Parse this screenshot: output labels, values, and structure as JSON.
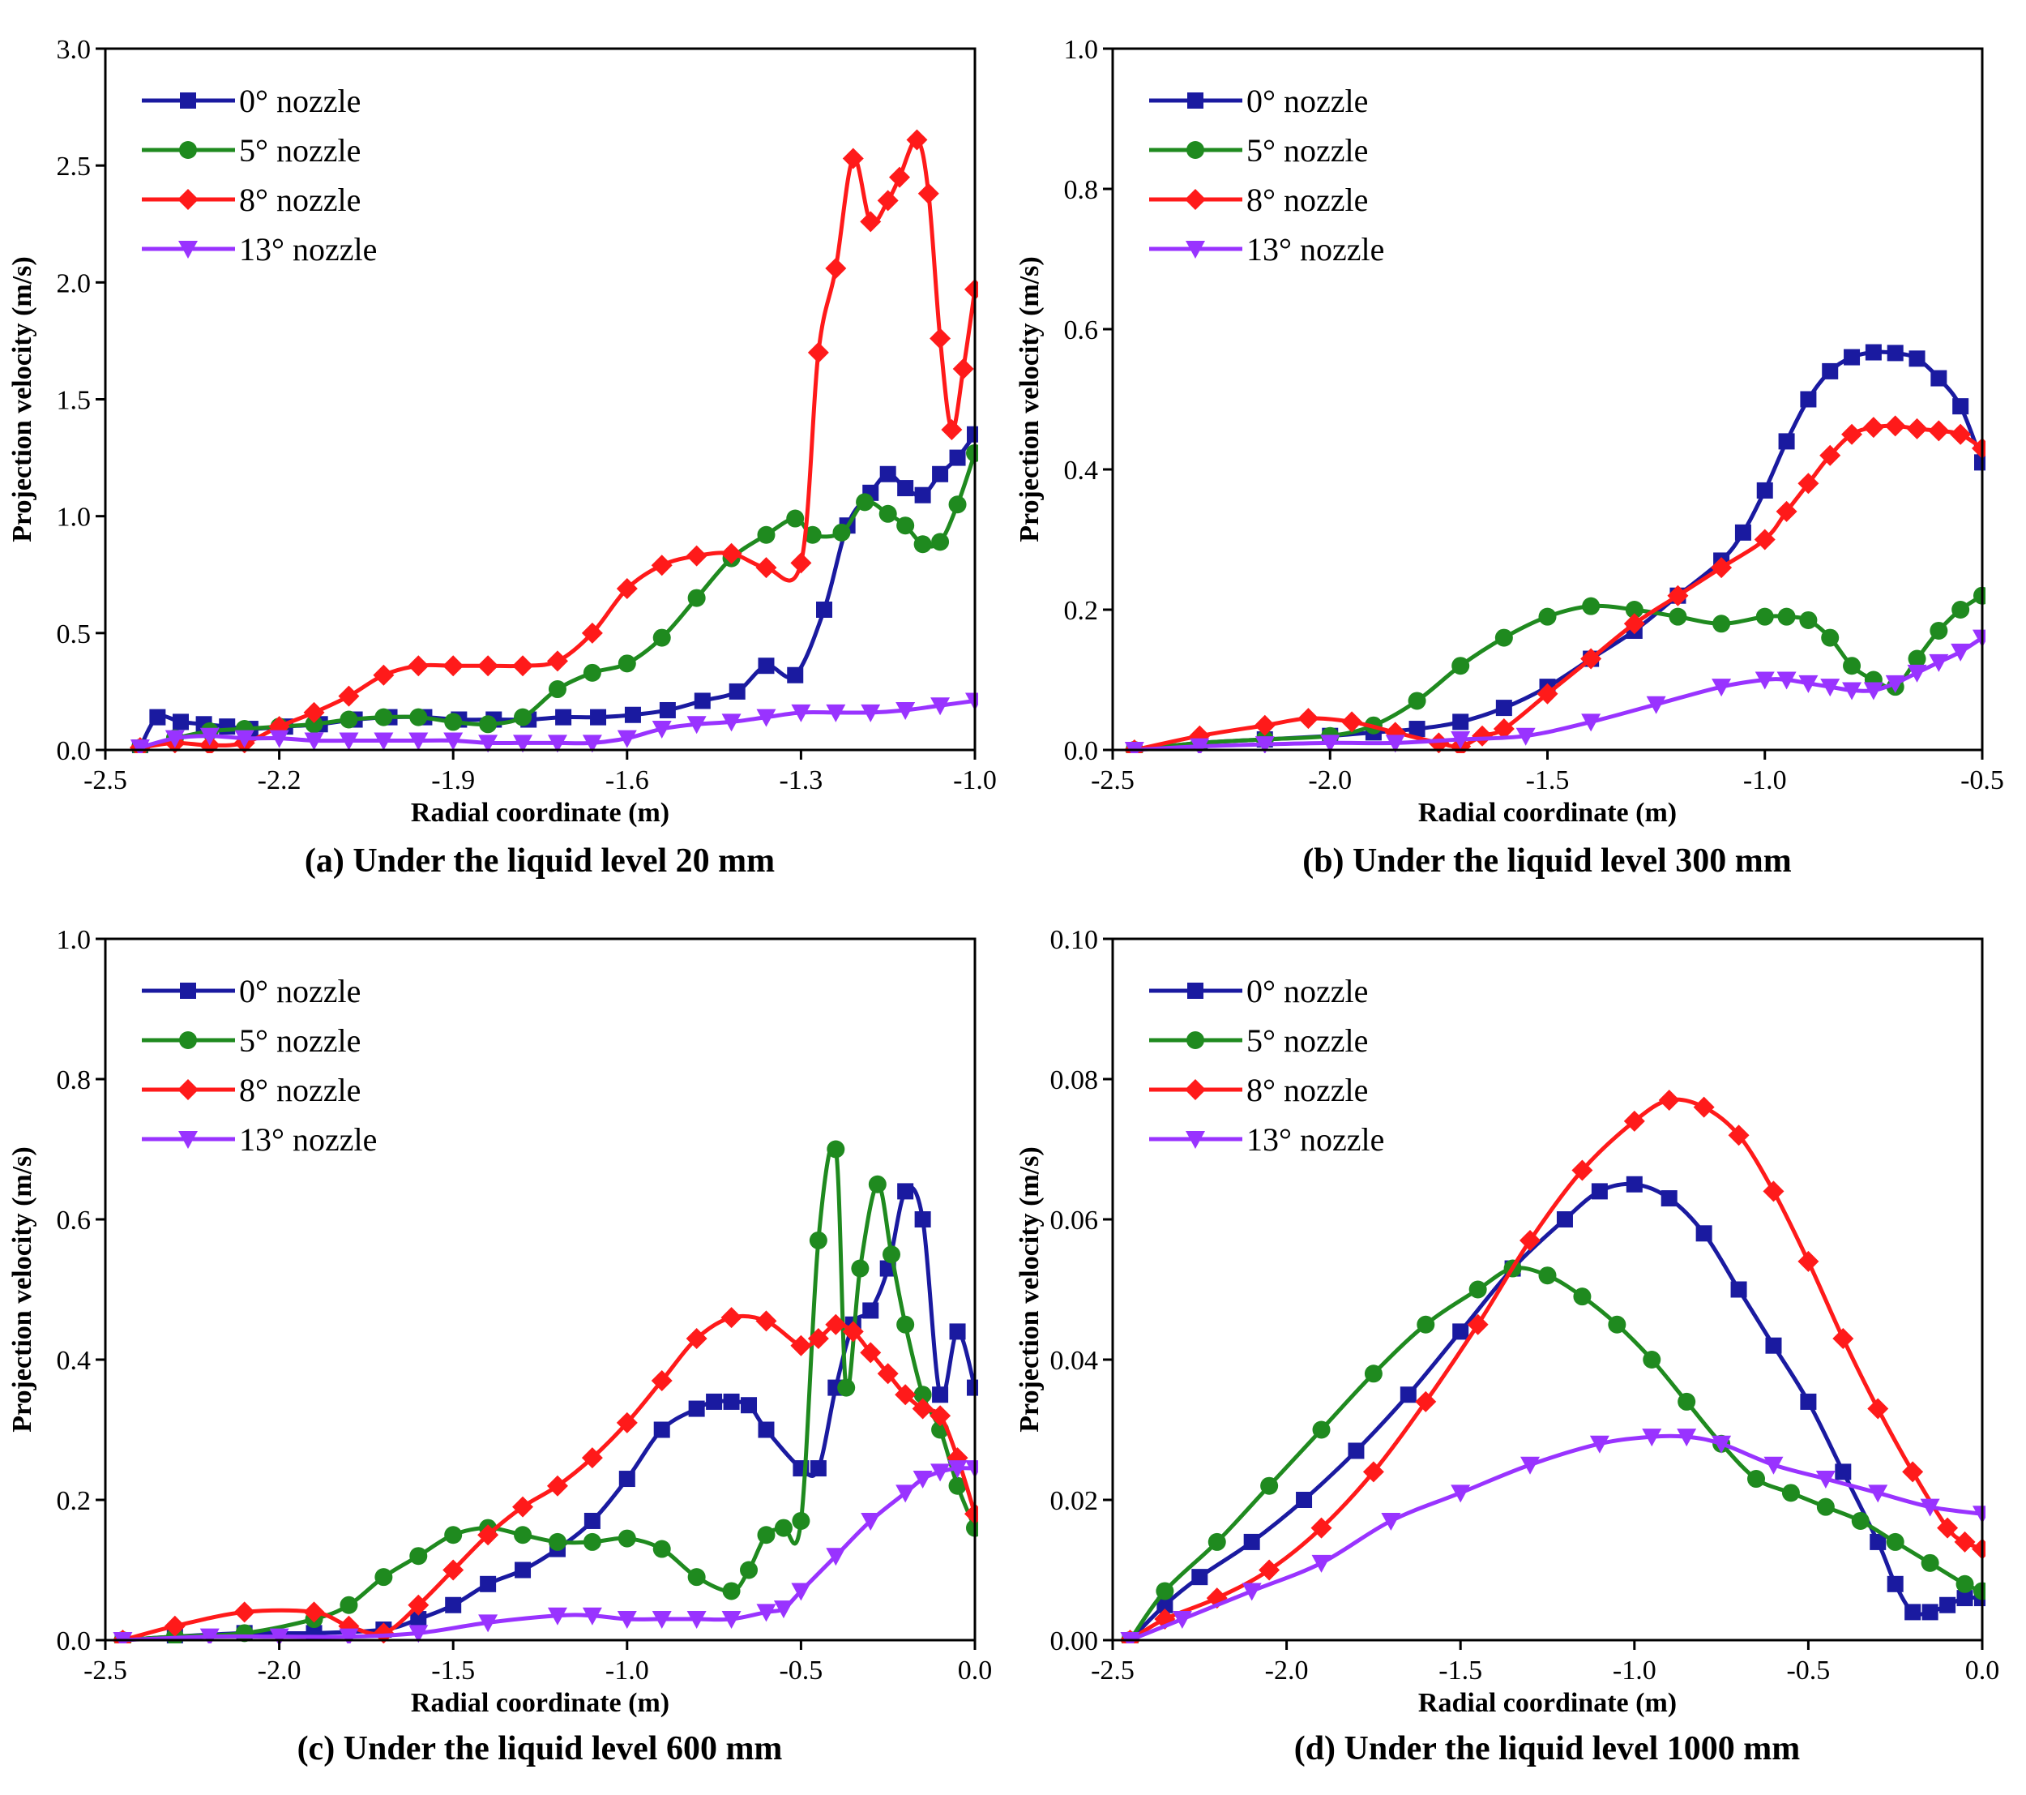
{
  "colors": {
    "s0": "#1a1aa0",
    "s5": "#1f8a1f",
    "s8": "#ff1a1a",
    "s13": "#9933ff"
  },
  "legend_labels": [
    "0°  nozzle",
    "5°  nozzle",
    "8°  nozzle",
    "13° nozzle"
  ],
  "chart_data": [
    {
      "type": "line",
      "caption": "(a) Under the liquid level 20 mm",
      "xlabel": "Radial coordinate (m)",
      "ylabel": "Projection velocity (m/s)",
      "xlim": [
        -2.5,
        -1.0
      ],
      "ylim": [
        0.0,
        3.0
      ],
      "xticks": [
        "-2.5",
        "-2.2",
        "-1.9",
        "-1.6",
        "-1.3",
        "-1.0"
      ],
      "yticks": [
        "0.0",
        "0.5",
        "1.0",
        "1.5",
        "2.0",
        "2.5",
        "3.0"
      ],
      "series": [
        {
          "name": "0° nozzle",
          "marker": "square",
          "x": [
            -2.44,
            -2.41,
            -2.37,
            -2.33,
            -2.29,
            -2.25,
            -2.19,
            -2.13,
            -2.07,
            -2.01,
            -1.95,
            -1.89,
            -1.83,
            -1.77,
            -1.71,
            -1.65,
            -1.59,
            -1.53,
            -1.47,
            -1.41,
            -1.36,
            -1.31,
            -1.26,
            -1.22,
            -1.18,
            -1.15,
            -1.12,
            -1.09,
            -1.06,
            -1.03,
            -1.0
          ],
          "y": [
            0.01,
            0.14,
            0.12,
            0.11,
            0.1,
            0.09,
            0.1,
            0.11,
            0.13,
            0.14,
            0.14,
            0.13,
            0.13,
            0.13,
            0.14,
            0.14,
            0.15,
            0.17,
            0.21,
            0.25,
            0.36,
            0.32,
            0.6,
            0.96,
            1.1,
            1.18,
            1.12,
            1.09,
            1.18,
            1.25,
            1.35
          ]
        },
        {
          "name": "5° nozzle",
          "marker": "circle",
          "x": [
            -2.44,
            -2.38,
            -2.32,
            -2.26,
            -2.2,
            -2.14,
            -2.08,
            -2.02,
            -1.96,
            -1.9,
            -1.84,
            -1.78,
            -1.72,
            -1.66,
            -1.6,
            -1.54,
            -1.48,
            -1.42,
            -1.36,
            -1.31,
            -1.28,
            -1.23,
            -1.19,
            -1.15,
            -1.12,
            -1.09,
            -1.06,
            -1.03,
            -1.0
          ],
          "y": [
            0.01,
            0.05,
            0.08,
            0.09,
            0.1,
            0.11,
            0.13,
            0.14,
            0.14,
            0.12,
            0.11,
            0.14,
            0.26,
            0.33,
            0.37,
            0.48,
            0.65,
            0.82,
            0.92,
            0.99,
            0.92,
            0.93,
            1.06,
            1.01,
            0.96,
            0.88,
            0.89,
            1.05,
            1.27
          ]
        },
        {
          "name": "8° nozzle",
          "marker": "diamond",
          "x": [
            -2.44,
            -2.38,
            -2.32,
            -2.26,
            -2.2,
            -2.14,
            -2.08,
            -2.02,
            -1.96,
            -1.9,
            -1.84,
            -1.78,
            -1.72,
            -1.66,
            -1.6,
            -1.54,
            -1.48,
            -1.42,
            -1.36,
            -1.3,
            -1.27,
            -1.24,
            -1.21,
            -1.18,
            -1.15,
            -1.13,
            -1.1,
            -1.08,
            -1.06,
            -1.04,
            -1.02,
            -1.0
          ],
          "y": [
            0.01,
            0.03,
            0.02,
            0.03,
            0.1,
            0.16,
            0.23,
            0.32,
            0.36,
            0.36,
            0.36,
            0.36,
            0.38,
            0.5,
            0.69,
            0.79,
            0.83,
            0.84,
            0.78,
            0.8,
            1.7,
            2.06,
            2.53,
            2.26,
            2.35,
            2.45,
            2.61,
            2.38,
            1.76,
            1.37,
            1.63,
            1.97
          ]
        },
        {
          "name": "13° nozzle",
          "marker": "triangle-down",
          "x": [
            -2.44,
            -2.38,
            -2.32,
            -2.26,
            -2.2,
            -2.14,
            -2.08,
            -2.02,
            -1.96,
            -1.9,
            -1.84,
            -1.78,
            -1.72,
            -1.66,
            -1.6,
            -1.54,
            -1.48,
            -1.42,
            -1.36,
            -1.3,
            -1.24,
            -1.18,
            -1.12,
            -1.06,
            -1.0
          ],
          "y": [
            0.01,
            0.05,
            0.06,
            0.05,
            0.05,
            0.04,
            0.04,
            0.04,
            0.04,
            0.04,
            0.03,
            0.03,
            0.03,
            0.03,
            0.05,
            0.09,
            0.11,
            0.12,
            0.14,
            0.16,
            0.16,
            0.16,
            0.17,
            0.19,
            0.21
          ]
        }
      ]
    },
    {
      "type": "line",
      "caption": "(b) Under the liquid level 300 mm",
      "xlabel": "Radial coordinate (m)",
      "ylabel": "Projection velocity (m/s)",
      "xlim": [
        -2.5,
        -0.5
      ],
      "ylim": [
        0.0,
        1.0
      ],
      "xticks": [
        "-2.5",
        "-2.0",
        "-1.5",
        "-1.0",
        "-0.5"
      ],
      "yticks": [
        "0.0",
        "0.2",
        "0.4",
        "0.6",
        "0.8",
        "1.0"
      ],
      "series": [
        {
          "name": "0° nozzle",
          "marker": "square",
          "x": [
            -2.45,
            -2.3,
            -2.15,
            -2.0,
            -1.9,
            -1.8,
            -1.7,
            -1.6,
            -1.5,
            -1.4,
            -1.3,
            -1.2,
            -1.1,
            -1.05,
            -1.0,
            -0.95,
            -0.9,
            -0.85,
            -0.8,
            -0.75,
            -0.7,
            -0.65,
            -0.6,
            -0.55,
            -0.5
          ],
          "y": [
            0.0,
            0.01,
            0.015,
            0.02,
            0.025,
            0.03,
            0.04,
            0.06,
            0.09,
            0.13,
            0.17,
            0.22,
            0.27,
            0.31,
            0.37,
            0.44,
            0.5,
            0.54,
            0.56,
            0.567,
            0.566,
            0.558,
            0.53,
            0.49,
            0.41
          ]
        },
        {
          "name": "5° nozzle",
          "marker": "circle",
          "x": [
            -2.45,
            -2.3,
            -2.15,
            -2.0,
            -1.9,
            -1.8,
            -1.7,
            -1.6,
            -1.5,
            -1.4,
            -1.3,
            -1.2,
            -1.1,
            -1.0,
            -0.95,
            -0.9,
            -0.85,
            -0.8,
            -0.75,
            -0.7,
            -0.65,
            -0.6,
            -0.55,
            -0.5
          ],
          "y": [
            0.0,
            0.01,
            0.015,
            0.02,
            0.035,
            0.07,
            0.12,
            0.16,
            0.19,
            0.205,
            0.2,
            0.19,
            0.18,
            0.19,
            0.19,
            0.185,
            0.16,
            0.12,
            0.1,
            0.09,
            0.13,
            0.17,
            0.2,
            0.22
          ]
        },
        {
          "name": "8° nozzle",
          "marker": "diamond",
          "x": [
            -2.45,
            -2.3,
            -2.15,
            -2.05,
            -1.95,
            -1.85,
            -1.75,
            -1.7,
            -1.65,
            -1.6,
            -1.5,
            -1.4,
            -1.3,
            -1.2,
            -1.1,
            -1.0,
            -0.95,
            -0.9,
            -0.85,
            -0.8,
            -0.75,
            -0.7,
            -0.65,
            -0.6,
            -0.55,
            -0.5
          ],
          "y": [
            0.0,
            0.02,
            0.035,
            0.045,
            0.04,
            0.025,
            0.01,
            0.005,
            0.02,
            0.03,
            0.08,
            0.13,
            0.18,
            0.22,
            0.26,
            0.3,
            0.34,
            0.38,
            0.42,
            0.45,
            0.46,
            0.462,
            0.458,
            0.455,
            0.45,
            0.43
          ]
        },
        {
          "name": "13° nozzle",
          "marker": "triangle-down",
          "x": [
            -2.45,
            -2.3,
            -2.15,
            -2.0,
            -1.85,
            -1.7,
            -1.55,
            -1.4,
            -1.25,
            -1.1,
            -1.0,
            -0.95,
            -0.9,
            -0.85,
            -0.8,
            -0.75,
            -0.7,
            -0.65,
            -0.6,
            -0.55,
            -0.5
          ],
          "y": [
            0.0,
            0.005,
            0.008,
            0.01,
            0.01,
            0.015,
            0.02,
            0.04,
            0.065,
            0.09,
            0.1,
            0.1,
            0.095,
            0.09,
            0.085,
            0.085,
            0.095,
            0.11,
            0.125,
            0.14,
            0.16
          ]
        }
      ]
    },
    {
      "type": "line",
      "caption": "(c) Under the liquid level 600 mm",
      "xlabel": "Radial coordinate (m)",
      "ylabel": "Projection velocity (m/s)",
      "xlim": [
        -2.5,
        0.0
      ],
      "ylim": [
        0.0,
        1.0
      ],
      "xticks": [
        "-2.5",
        "-2.0",
        "-1.5",
        "-1.0",
        "-0.5",
        "0.0"
      ],
      "yticks": [
        "0.0",
        "0.2",
        "0.4",
        "0.6",
        "0.8",
        "1.0"
      ],
      "series": [
        {
          "name": "0° nozzle",
          "marker": "square",
          "x": [
            -2.45,
            -2.3,
            -2.1,
            -1.9,
            -1.7,
            -1.6,
            -1.5,
            -1.4,
            -1.3,
            -1.2,
            -1.1,
            -1.0,
            -0.9,
            -0.8,
            -0.75,
            -0.7,
            -0.65,
            -0.6,
            -0.5,
            -0.45,
            -0.4,
            -0.35,
            -0.3,
            -0.25,
            -0.2,
            -0.15,
            -0.1,
            -0.05,
            0.0
          ],
          "y": [
            0.0,
            0.005,
            0.01,
            0.01,
            0.015,
            0.03,
            0.05,
            0.08,
            0.1,
            0.13,
            0.17,
            0.23,
            0.3,
            0.33,
            0.34,
            0.34,
            0.335,
            0.3,
            0.245,
            0.245,
            0.36,
            0.45,
            0.47,
            0.53,
            0.64,
            0.6,
            0.35,
            0.44,
            0.36
          ]
        },
        {
          "name": "5° nozzle",
          "marker": "circle",
          "x": [
            -2.45,
            -2.3,
            -2.1,
            -1.9,
            -1.8,
            -1.7,
            -1.6,
            -1.5,
            -1.4,
            -1.3,
            -1.2,
            -1.1,
            -1.0,
            -0.9,
            -0.8,
            -0.7,
            -0.65,
            -0.6,
            -0.55,
            -0.5,
            -0.45,
            -0.4,
            -0.37,
            -0.33,
            -0.28,
            -0.24,
            -0.2,
            -0.15,
            -0.1,
            -0.05,
            0.0
          ],
          "y": [
            0.0,
            0.005,
            0.01,
            0.03,
            0.05,
            0.09,
            0.12,
            0.15,
            0.16,
            0.15,
            0.14,
            0.14,
            0.145,
            0.13,
            0.09,
            0.07,
            0.1,
            0.15,
            0.16,
            0.17,
            0.57,
            0.7,
            0.36,
            0.53,
            0.65,
            0.55,
            0.45,
            0.35,
            0.3,
            0.22,
            0.16
          ]
        },
        {
          "name": "8° nozzle",
          "marker": "diamond",
          "x": [
            -2.45,
            -2.3,
            -2.1,
            -1.9,
            -1.8,
            -1.7,
            -1.6,
            -1.5,
            -1.4,
            -1.3,
            -1.2,
            -1.1,
            -1.0,
            -0.9,
            -0.8,
            -0.7,
            -0.6,
            -0.5,
            -0.45,
            -0.4,
            -0.35,
            -0.3,
            -0.25,
            -0.2,
            -0.15,
            -0.1,
            -0.05,
            0.0
          ],
          "y": [
            0.0,
            0.02,
            0.04,
            0.04,
            0.02,
            0.01,
            0.05,
            0.1,
            0.15,
            0.19,
            0.22,
            0.26,
            0.31,
            0.37,
            0.43,
            0.46,
            0.455,
            0.42,
            0.43,
            0.45,
            0.44,
            0.41,
            0.38,
            0.35,
            0.33,
            0.32,
            0.26,
            0.18
          ]
        },
        {
          "name": "13° nozzle",
          "marker": "triangle-down",
          "x": [
            -2.45,
            -2.2,
            -2.0,
            -1.8,
            -1.6,
            -1.4,
            -1.2,
            -1.1,
            -1.0,
            -0.9,
            -0.8,
            -0.7,
            -0.6,
            -0.55,
            -0.5,
            -0.4,
            -0.3,
            -0.2,
            -0.15,
            -0.1,
            -0.05,
            0.0
          ],
          "y": [
            0.0,
            0.005,
            0.005,
            0.005,
            0.01,
            0.025,
            0.035,
            0.035,
            0.03,
            0.03,
            0.03,
            0.03,
            0.04,
            0.045,
            0.07,
            0.12,
            0.17,
            0.21,
            0.23,
            0.24,
            0.245,
            0.245
          ]
        }
      ]
    },
    {
      "type": "line",
      "caption": "(d) Under the liquid level 1000 mm",
      "xlabel": "Radial coordinate (m)",
      "ylabel": "Projection velocity (m/s)",
      "xlim": [
        -2.5,
        0.0
      ],
      "ylim": [
        0.0,
        0.1
      ],
      "xticks": [
        "-2.5",
        "-2.0",
        "-1.5",
        "-1.0",
        "-0.5",
        "0.0"
      ],
      "yticks": [
        "0.00",
        "0.02",
        "0.04",
        "0.06",
        "0.08",
        "0.10"
      ],
      "series": [
        {
          "name": "0° nozzle",
          "marker": "square",
          "x": [
            -2.45,
            -2.35,
            -2.25,
            -2.1,
            -1.95,
            -1.8,
            -1.65,
            -1.5,
            -1.35,
            -1.2,
            -1.1,
            -1.0,
            -0.9,
            -0.8,
            -0.7,
            -0.6,
            -0.5,
            -0.4,
            -0.3,
            -0.25,
            -0.2,
            -0.15,
            -0.1,
            -0.05,
            0.0
          ],
          "y": [
            0.0,
            0.005,
            0.009,
            0.014,
            0.02,
            0.027,
            0.035,
            0.044,
            0.053,
            0.06,
            0.064,
            0.065,
            0.063,
            0.058,
            0.05,
            0.042,
            0.034,
            0.024,
            0.014,
            0.008,
            0.004,
            0.004,
            0.005,
            0.006,
            0.006
          ]
        },
        {
          "name": "5° nozzle",
          "marker": "circle",
          "x": [
            -2.45,
            -2.35,
            -2.2,
            -2.05,
            -1.9,
            -1.75,
            -1.6,
            -1.45,
            -1.35,
            -1.25,
            -1.15,
            -1.05,
            -0.95,
            -0.85,
            -0.75,
            -0.65,
            -0.55,
            -0.45,
            -0.35,
            -0.25,
            -0.15,
            -0.05,
            0.0
          ],
          "y": [
            0.0,
            0.007,
            0.014,
            0.022,
            0.03,
            0.038,
            0.045,
            0.05,
            0.053,
            0.052,
            0.049,
            0.045,
            0.04,
            0.034,
            0.028,
            0.023,
            0.021,
            0.019,
            0.017,
            0.014,
            0.011,
            0.008,
            0.007
          ]
        },
        {
          "name": "8° nozzle",
          "marker": "diamond",
          "x": [
            -2.45,
            -2.35,
            -2.2,
            -2.05,
            -1.9,
            -1.75,
            -1.6,
            -1.45,
            -1.3,
            -1.15,
            -1.0,
            -0.9,
            -0.8,
            -0.7,
            -0.6,
            -0.5,
            -0.4,
            -0.3,
            -0.2,
            -0.1,
            -0.05,
            0.0
          ],
          "y": [
            0.0,
            0.003,
            0.006,
            0.01,
            0.016,
            0.024,
            0.034,
            0.045,
            0.057,
            0.067,
            0.074,
            0.077,
            0.076,
            0.072,
            0.064,
            0.054,
            0.043,
            0.033,
            0.024,
            0.016,
            0.014,
            0.013
          ]
        },
        {
          "name": "13° nozzle",
          "marker": "triangle-down",
          "x": [
            -2.45,
            -2.3,
            -2.1,
            -1.9,
            -1.7,
            -1.5,
            -1.3,
            -1.1,
            -0.95,
            -0.85,
            -0.75,
            -0.6,
            -0.45,
            -0.3,
            -0.15,
            0.0
          ],
          "y": [
            0.0,
            0.003,
            0.007,
            0.011,
            0.017,
            0.021,
            0.025,
            0.028,
            0.029,
            0.029,
            0.028,
            0.025,
            0.023,
            0.021,
            0.019,
            0.018
          ]
        }
      ]
    }
  ]
}
